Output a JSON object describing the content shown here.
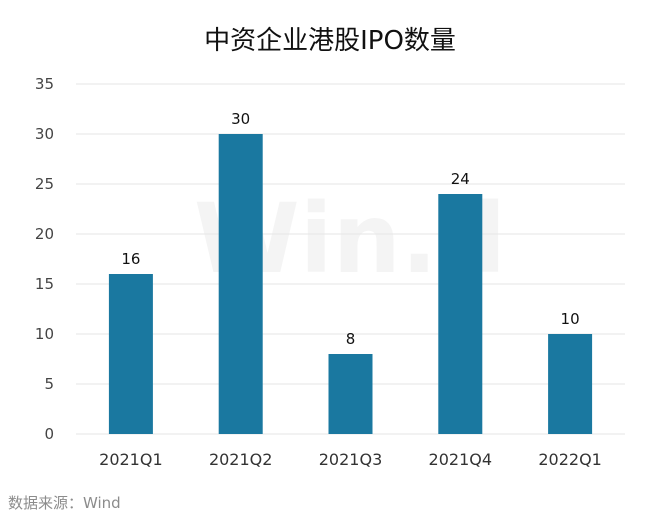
{
  "title": "中资企业港股IPO数量",
  "source": "数据来源：Wind",
  "watermark": "Win.d",
  "colors": {
    "bar": "#1a78a0",
    "grid": "#e6e6e6"
  },
  "chart_data": {
    "type": "bar",
    "title": "中资企业港股IPO数量",
    "categories": [
      "2021Q1",
      "2021Q2",
      "2021Q3",
      "2021Q4",
      "2022Q1"
    ],
    "values": [
      16,
      30,
      8,
      24,
      10
    ],
    "data_labels": [
      "16",
      "30",
      "8",
      "24",
      "10"
    ],
    "yticks": [
      0,
      5,
      10,
      15,
      20,
      25,
      30,
      35
    ],
    "ylim": [
      0,
      35
    ],
    "xlabel": "",
    "ylabel": "",
    "grid": true,
    "legend": "none"
  }
}
